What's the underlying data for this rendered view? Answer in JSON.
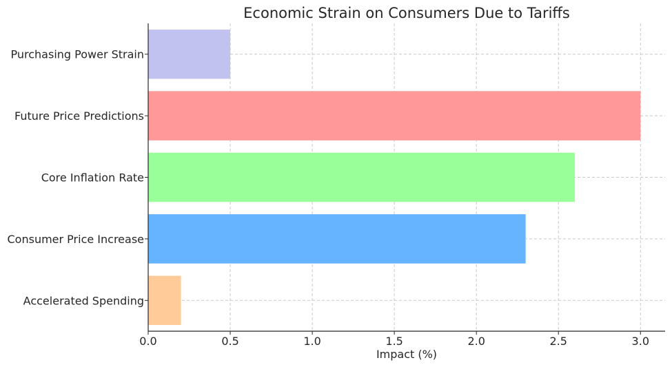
{
  "chart_data": {
    "type": "bar",
    "orientation": "horizontal",
    "title": "Economic Strain on Consumers Due to Tariffs",
    "xlabel": "Impact (%)",
    "ylabel": "",
    "categories": [
      "Accelerated Spending",
      "Consumer Price Increase",
      "Core Inflation Rate",
      "Future Price Predictions",
      "Purchasing Power Strain"
    ],
    "values": [
      0.2,
      2.3,
      2.6,
      3.0,
      0.5
    ],
    "colors": [
      "#ffcc99",
      "#66b3ff",
      "#99ff99",
      "#ff9999",
      "#c2c2f0"
    ],
    "xlim": [
      0.0,
      3.15
    ],
    "xticks": [
      0.0,
      0.5,
      1.0,
      1.5,
      2.0,
      2.5,
      3.0
    ],
    "xtick_labels": [
      "0.0",
      "0.5",
      "1.0",
      "1.5",
      "2.0",
      "2.5",
      "3.0"
    ],
    "grid": true
  }
}
